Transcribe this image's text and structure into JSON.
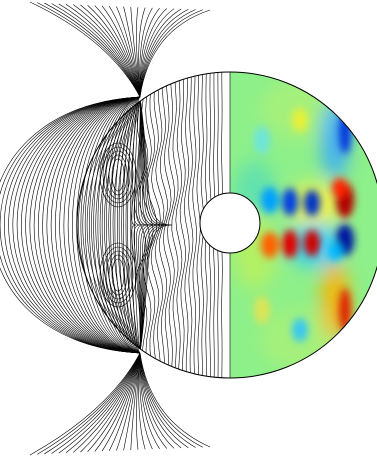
{
  "figure": {
    "left_panel": "field-line-contours",
    "right_panel": "colormap-field",
    "colormap": "jet",
    "colors": {
      "background": "#ffffff",
      "outline": "#000000",
      "colormap_base": "#88f088",
      "strong_positive": "#b00000",
      "strong_negative": "#001a9a"
    }
  }
}
